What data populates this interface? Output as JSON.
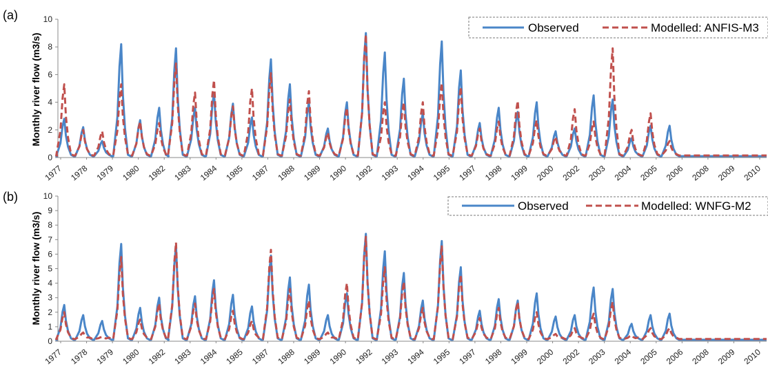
{
  "chart_data": [
    {
      "type": "line",
      "panel_label": "(a)",
      "ylabel": "Monthly river flow (m3/s)",
      "xlabel": "",
      "ylim": [
        0,
        10
      ],
      "yticks": [
        0,
        2,
        4,
        6,
        8,
        10
      ],
      "xtick_labels": [
        "1977",
        "1978",
        "1979",
        "1980",
        "1982",
        "1983",
        "1984",
        "1985",
        "1987",
        "1988",
        "1989",
        "1990",
        "1992",
        "1993",
        "1994",
        "1995",
        "1997",
        "1998",
        "1999",
        "2000",
        "2002",
        "2003",
        "2004",
        "2005",
        "2006",
        "2008",
        "2009",
        "2010"
      ],
      "legend_position": "top-right",
      "colors": {
        "observed": "#4a86c8",
        "modelled": "#c0504d"
      },
      "series": [
        {
          "name": "Observed",
          "style": "solid",
          "peaks": [
            [
              1977.3,
              2.8
            ],
            [
              1978.2,
              2.2
            ],
            [
              1979.1,
              1.2
            ],
            [
              1980.0,
              8.2
            ],
            [
              1980.9,
              2.7
            ],
            [
              1981.8,
              3.6
            ],
            [
              1982.6,
              7.9
            ],
            [
              1983.5,
              3.6
            ],
            [
              1984.4,
              4.7
            ],
            [
              1985.3,
              3.9
            ],
            [
              1986.2,
              2.9
            ],
            [
              1987.1,
              7.1
            ],
            [
              1988.0,
              5.3
            ],
            [
              1988.9,
              4.0
            ],
            [
              1989.8,
              2.1
            ],
            [
              1990.7,
              4.0
            ],
            [
              1991.6,
              9.0
            ],
            [
              1992.5,
              7.6
            ],
            [
              1993.4,
              5.7
            ],
            [
              1994.3,
              3.2
            ],
            [
              1995.2,
              8.4
            ],
            [
              1996.1,
              6.3
            ],
            [
              1997.0,
              2.5
            ],
            [
              1997.9,
              3.6
            ],
            [
              1998.8,
              3.3
            ],
            [
              1999.7,
              4.0
            ],
            [
              2000.6,
              1.9
            ],
            [
              2001.5,
              2.1
            ],
            [
              2002.4,
              4.5
            ],
            [
              2003.3,
              4.2
            ],
            [
              2004.2,
              1.4
            ],
            [
              2005.1,
              2.3
            ],
            [
              2006.0,
              2.3
            ]
          ]
        },
        {
          "name": "Modelled: ANFIS-M3",
          "style": "dashed",
          "peaks": [
            [
              1977.3,
              5.3
            ],
            [
              1978.2,
              2.0
            ],
            [
              1979.1,
              1.9
            ],
            [
              1980.0,
              5.3
            ],
            [
              1980.9,
              2.6
            ],
            [
              1981.8,
              2.5
            ],
            [
              1982.6,
              6.8
            ],
            [
              1983.5,
              4.7
            ],
            [
              1984.4,
              5.6
            ],
            [
              1985.3,
              3.7
            ],
            [
              1986.2,
              5.0
            ],
            [
              1987.1,
              6.1
            ],
            [
              1988.0,
              4.2
            ],
            [
              1988.9,
              4.8
            ],
            [
              1989.8,
              1.8
            ],
            [
              1990.7,
              3.6
            ],
            [
              1991.6,
              8.9
            ],
            [
              1992.5,
              4.0
            ],
            [
              1993.4,
              4.0
            ],
            [
              1994.3,
              4.0
            ],
            [
              1995.2,
              5.4
            ],
            [
              1996.1,
              5.1
            ],
            [
              1997.0,
              2.1
            ],
            [
              1997.9,
              2.6
            ],
            [
              1998.8,
              4.1
            ],
            [
              1999.7,
              2.7
            ],
            [
              2000.6,
              1.5
            ],
            [
              2001.5,
              3.5
            ],
            [
              2002.4,
              2.6
            ],
            [
              2003.3,
              7.9
            ],
            [
              2004.2,
              2.0
            ],
            [
              2005.1,
              3.2
            ],
            [
              2006.0,
              1.2
            ]
          ]
        }
      ]
    },
    {
      "type": "line",
      "panel_label": "(b)",
      "ylabel": "Monthly river flow (m3/s)",
      "xlabel": "",
      "ylim": [
        0,
        10
      ],
      "yticks": [
        0,
        1,
        2,
        3,
        4,
        5,
        6,
        7,
        8,
        9,
        10
      ],
      "xtick_labels": [
        "1977",
        "1978",
        "1979",
        "1980",
        "1982",
        "1983",
        "1984",
        "1985",
        "1987",
        "1988",
        "1989",
        "1990",
        "1992",
        "1993",
        "1994",
        "1995",
        "1997",
        "1998",
        "1999",
        "2000",
        "2002",
        "2003",
        "2004",
        "2005",
        "2006",
        "2008",
        "2009",
        "2010"
      ],
      "legend_position": "top-right",
      "colors": {
        "observed": "#4a86c8",
        "modelled": "#c0504d"
      },
      "series": [
        {
          "name": "Observed",
          "style": "solid",
          "peaks": [
            [
              1977.3,
              2.5
            ],
            [
              1978.2,
              1.8
            ],
            [
              1979.1,
              1.4
            ],
            [
              1980.0,
              6.7
            ],
            [
              1980.9,
              2.3
            ],
            [
              1981.8,
              3.0
            ],
            [
              1982.6,
              6.6
            ],
            [
              1983.5,
              3.1
            ],
            [
              1984.4,
              4.2
            ],
            [
              1985.3,
              3.2
            ],
            [
              1986.2,
              2.4
            ],
            [
              1987.1,
              5.9
            ],
            [
              1988.0,
              4.4
            ],
            [
              1988.9,
              3.9
            ],
            [
              1989.8,
              1.8
            ],
            [
              1990.7,
              3.3
            ],
            [
              1991.6,
              7.4
            ],
            [
              1992.5,
              6.2
            ],
            [
              1993.4,
              4.7
            ],
            [
              1994.3,
              2.8
            ],
            [
              1995.2,
              6.9
            ],
            [
              1996.1,
              5.1
            ],
            [
              1997.0,
              2.1
            ],
            [
              1997.9,
              2.9
            ],
            [
              1998.8,
              2.8
            ],
            [
              1999.7,
              3.3
            ],
            [
              2000.6,
              1.7
            ],
            [
              2001.5,
              1.8
            ],
            [
              2002.4,
              3.7
            ],
            [
              2003.3,
              3.6
            ],
            [
              2004.2,
              1.2
            ],
            [
              2005.1,
              1.8
            ],
            [
              2006.0,
              1.9
            ]
          ]
        },
        {
          "name": "Modelled: WNFG-M2",
          "style": "dashed",
          "peaks": [
            [
              1977.3,
              2.0
            ],
            [
              1978.2,
              0.6
            ],
            [
              1979.1,
              0.3
            ],
            [
              1980.0,
              5.8
            ],
            [
              1980.9,
              1.5
            ],
            [
              1981.8,
              2.6
            ],
            [
              1982.6,
              6.8
            ],
            [
              1983.5,
              2.6
            ],
            [
              1984.4,
              3.6
            ],
            [
              1985.3,
              2.1
            ],
            [
              1986.2,
              1.4
            ],
            [
              1987.1,
              6.3
            ],
            [
              1988.0,
              3.6
            ],
            [
              1988.9,
              2.8
            ],
            [
              1989.8,
              0.6
            ],
            [
              1990.7,
              4.0
            ],
            [
              1991.6,
              7.2
            ],
            [
              1992.5,
              5.1
            ],
            [
              1993.4,
              4.1
            ],
            [
              1994.3,
              2.3
            ],
            [
              1995.2,
              6.6
            ],
            [
              1996.1,
              4.6
            ],
            [
              1997.0,
              1.6
            ],
            [
              1997.9,
              2.3
            ],
            [
              1998.8,
              2.7
            ],
            [
              1999.7,
              2.0
            ],
            [
              2000.6,
              0.5
            ],
            [
              2001.5,
              0.9
            ],
            [
              2002.4,
              1.9
            ],
            [
              2003.3,
              2.7
            ],
            [
              2004.2,
              0.4
            ],
            [
              2005.1,
              0.9
            ],
            [
              2006.0,
              0.9
            ]
          ]
        }
      ]
    }
  ]
}
